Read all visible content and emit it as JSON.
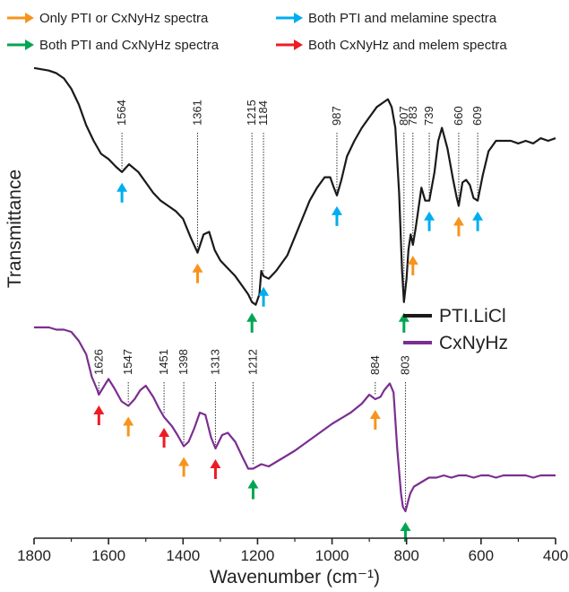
{
  "chart_data": {
    "type": "line",
    "xlabel": "Wavenumber (cm⁻¹)",
    "ylabel": "Transmittance",
    "xlim": [
      1800,
      400
    ],
    "x_ticks": [
      1800,
      1600,
      1400,
      1200,
      1000,
      800,
      600,
      400
    ],
    "x_tick_labels": [
      "1800",
      "1600",
      "1400",
      "1200",
      "1000",
      "800",
      "600",
      "400"
    ],
    "legend_position": "top",
    "arrow_legend": [
      {
        "label": "Only PTI or CxNyHz spectra",
        "color": "#f7941d"
      },
      {
        "label": "Both PTI and melamine spectra",
        "color": "#00aeef"
      },
      {
        "label": "Both PTI and CxNyHz spectra",
        "color": "#00a651"
      },
      {
        "label": "Both CxNyHz and melem spectra",
        "color": "#ed1c24"
      }
    ],
    "series": [
      {
        "name": "PTI.LiCl",
        "color": "#1a1a1a",
        "x": [
          1800,
          1760,
          1740,
          1720,
          1700,
          1680,
          1660,
          1640,
          1620,
          1600,
          1580,
          1564,
          1545,
          1520,
          1500,
          1480,
          1460,
          1440,
          1420,
          1400,
          1380,
          1361,
          1345,
          1330,
          1315,
          1300,
          1280,
          1260,
          1240,
          1225,
          1215,
          1205,
          1195,
          1190,
          1184,
          1170,
          1150,
          1120,
          1100,
          1080,
          1060,
          1040,
          1020,
          1005,
          995,
          987,
          975,
          960,
          940,
          920,
          900,
          880,
          860,
          850,
          840,
          830,
          820,
          812,
          807,
          800,
          795,
          789,
          783,
          776,
          770,
          760,
          750,
          739,
          725,
          715,
          705,
          690,
          675,
          665,
          660,
          650,
          640,
          630,
          620,
          609,
          595,
          580,
          560,
          540,
          520,
          500,
          480,
          460,
          440,
          420,
          400
        ],
        "y": [
          98,
          97,
          96,
          94,
          90,
          84,
          76,
          70,
          65,
          63,
          60,
          58,
          61,
          58,
          54,
          50,
          47,
          45,
          43,
          40,
          33,
          27,
          34,
          35,
          28,
          24,
          21,
          18,
          14,
          11,
          8,
          7,
          11,
          20,
          18,
          17,
          20,
          26,
          33,
          40,
          47,
          52,
          56,
          56,
          52,
          49,
          55,
          64,
          70,
          75,
          79,
          83,
          85,
          86,
          83,
          75,
          50,
          20,
          8,
          17,
          28,
          34,
          30,
          36,
          42,
          52,
          47,
          47,
          58,
          70,
          75,
          67,
          55,
          48,
          45,
          54,
          55,
          53,
          48,
          47,
          57,
          66,
          70,
          70,
          70,
          69,
          70,
          69,
          71,
          70,
          71
        ]
      },
      {
        "name": "CxNyHz",
        "color": "#7b2e91",
        "x": [
          1800,
          1760,
          1740,
          1720,
          1700,
          1680,
          1660,
          1645,
          1630,
          1626,
          1615,
          1600,
          1585,
          1565,
          1547,
          1530,
          1515,
          1500,
          1480,
          1465,
          1451,
          1430,
          1415,
          1398,
          1385,
          1370,
          1355,
          1340,
          1325,
          1313,
          1295,
          1280,
          1260,
          1240,
          1225,
          1212,
          1190,
          1170,
          1150,
          1120,
          1100,
          1050,
          1000,
          950,
          920,
          900,
          884,
          870,
          860,
          845,
          835,
          825,
          815,
          810,
          803,
          795,
          790,
          780,
          770,
          760,
          740,
          720,
          700,
          680,
          660,
          640,
          620,
          600,
          580,
          560,
          540,
          520,
          500,
          480,
          460,
          440,
          420,
          400
        ],
        "y": [
          94,
          94,
          93,
          93,
          92,
          88,
          82,
          72,
          66,
          64,
          67,
          71,
          67,
          61,
          59,
          62,
          66,
          68,
          63,
          58,
          54,
          50,
          46,
          41,
          43,
          49,
          56,
          55,
          45,
          40,
          46,
          47,
          43,
          36,
          31,
          31,
          33,
          32,
          34,
          37,
          39,
          45,
          51,
          56,
          60,
          64,
          62,
          63,
          66,
          69,
          65,
          40,
          20,
          14,
          12,
          17,
          20,
          23,
          24,
          25,
          27,
          27,
          28,
          27,
          28,
          28,
          27,
          28,
          28,
          27,
          28,
          28,
          28,
          28,
          27,
          28,
          28,
          28
        ]
      }
    ],
    "peak_labels": [
      {
        "text": "1564",
        "x": 1564,
        "series": "PTI.LiCl",
        "arrow": "#00aeef"
      },
      {
        "text": "1361",
        "x": 1361,
        "series": "PTI.LiCl",
        "arrow": "#f7941d"
      },
      {
        "text": "1215",
        "x": 1215,
        "series": "PTI.LiCl",
        "arrow": "#00a651"
      },
      {
        "text": "1184",
        "x": 1184,
        "series": "PTI.LiCl",
        "arrow": "#00aeef"
      },
      {
        "text": "987",
        "x": 987,
        "series": "PTI.LiCl",
        "arrow": "#00aeef"
      },
      {
        "text": "807",
        "x": 807,
        "series": "PTI.LiCl",
        "arrow": "#00a651"
      },
      {
        "text": "783",
        "x": 783,
        "series": "PTI.LiCl",
        "arrow": "#f7941d"
      },
      {
        "text": "739",
        "x": 739,
        "series": "PTI.LiCl",
        "arrow": "#00aeef"
      },
      {
        "text": "660",
        "x": 660,
        "series": "PTI.LiCl",
        "arrow": "#f7941d"
      },
      {
        "text": "609",
        "x": 609,
        "series": "PTI.LiCl",
        "arrow": "#00aeef"
      },
      {
        "text": "1626",
        "x": 1626,
        "series": "CxNyHz",
        "arrow": "#ed1c24"
      },
      {
        "text": "1547",
        "x": 1547,
        "series": "CxNyHz",
        "arrow": "#f7941d"
      },
      {
        "text": "1451",
        "x": 1451,
        "series": "CxNyHz",
        "arrow": "#ed1c24"
      },
      {
        "text": "1398",
        "x": 1398,
        "series": "CxNyHz",
        "arrow": "#f7941d"
      },
      {
        "text": "1313",
        "x": 1313,
        "series": "CxNyHz",
        "arrow": "#ed1c24"
      },
      {
        "text": "1212",
        "x": 1212,
        "series": "CxNyHz",
        "arrow": "#00a651"
      },
      {
        "text": "884",
        "x": 884,
        "series": "CxNyHz",
        "arrow": "#f7941d"
      },
      {
        "text": "803",
        "x": 803,
        "series": "CxNyHz",
        "arrow": "#00a651"
      }
    ]
  }
}
